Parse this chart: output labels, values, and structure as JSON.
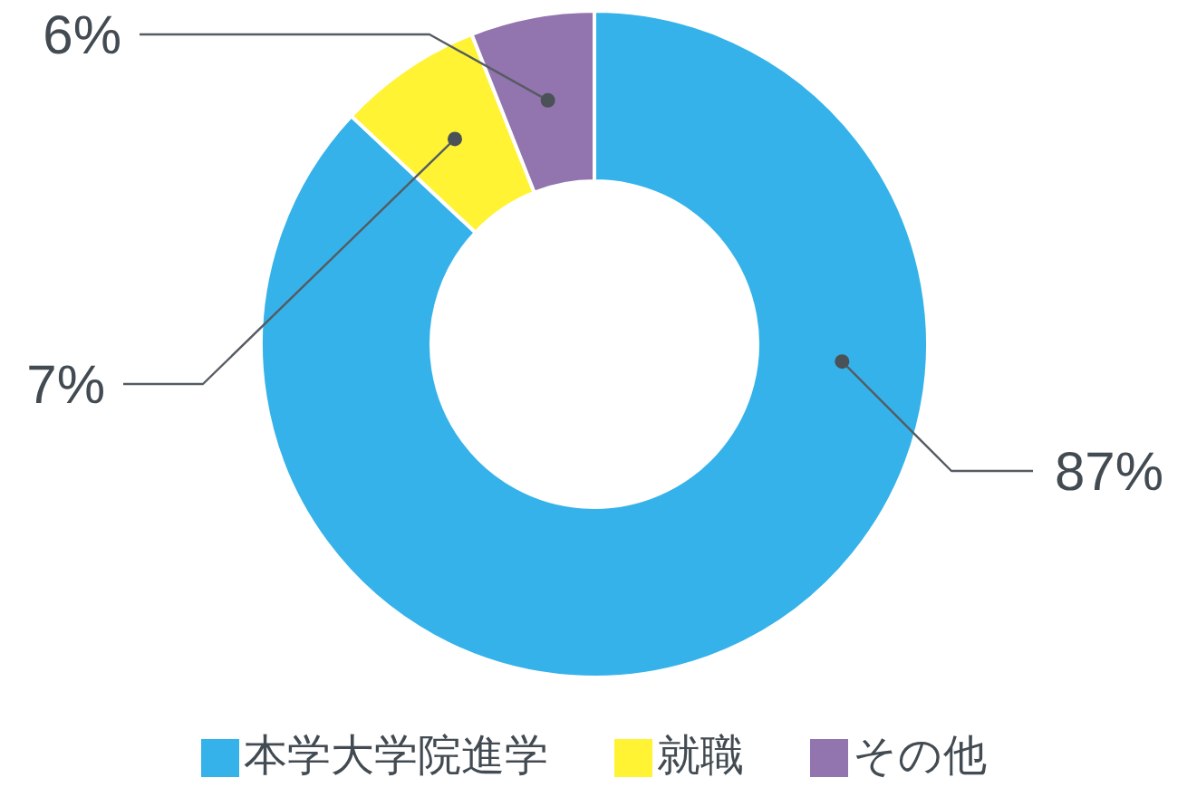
{
  "chart_data": {
    "type": "donut",
    "categories": [
      "本学大学院進学",
      "就職",
      "その他"
    ],
    "values": [
      87,
      7,
      6
    ],
    "colors": [
      "#35b2ea",
      "#fff334",
      "#9274ae"
    ],
    "value_labels": [
      "87%",
      "7%",
      "6%"
    ],
    "legend": "bottom"
  }
}
